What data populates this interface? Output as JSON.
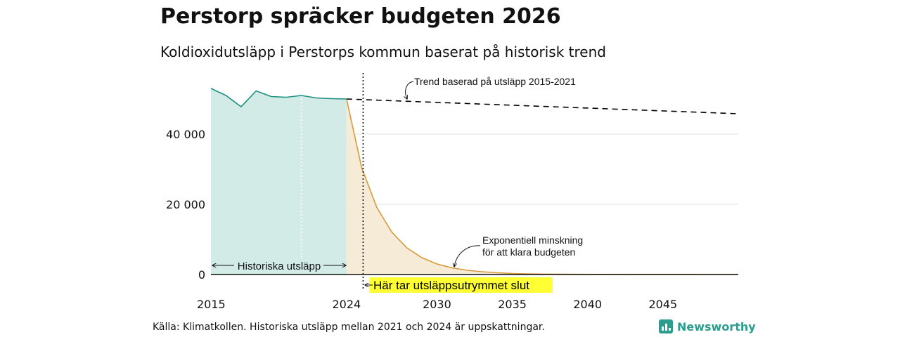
{
  "title": "Perstorp spräcker budgeten 2026",
  "subtitle": "Koldioxidutsläpp i Perstorps kommun baserat på historisk trend",
  "source": "Källa: Klimatkollen. Historiska utsläpp mellan 2021 och 2024 är uppskattningar.",
  "brand": {
    "name": "Newsworthy",
    "icon": "newsworthy-logo-icon",
    "color": "#2a9d8f"
  },
  "colors": {
    "historical_line": "#1a9080",
    "historical_fill": "#d3ebe7",
    "budget_line": "#d89a3a",
    "budget_fill": "#f6ebd7",
    "highlight": "#ffff33"
  },
  "chart_data": {
    "type": "area",
    "title": "Perstorp spräcker budgeten 2026",
    "subtitle": "Koldioxidutsläpp i Perstorps kommun baserat på historisk trend",
    "xlabel": "",
    "ylabel": "",
    "xlim": [
      2015,
      2050
    ],
    "ylim": [
      0,
      55000
    ],
    "grid": true,
    "x_ticks": [
      2015,
      2024,
      2030,
      2035,
      2040,
      2045
    ],
    "x_tick_labels": [
      "2015",
      "2024",
      "2030",
      "2035",
      "2040",
      "2045"
    ],
    "y_ticks": [
      0,
      20000,
      40000
    ],
    "y_tick_labels": [
      "0",
      "20 000",
      "40 000"
    ],
    "series": [
      {
        "name": "Historiska utsläpp",
        "style": "solid-filled",
        "x": [
          2015,
          2016,
          2017,
          2018,
          2019,
          2020,
          2021,
          2022,
          2023,
          2024
        ],
        "y": [
          53000,
          51000,
          47800,
          52300,
          50700,
          50500,
          51000,
          50300,
          50100,
          50000
        ]
      },
      {
        "name": "Trend baserad på utsläpp 2015-2021",
        "style": "dashed",
        "x": [
          2024,
          2050
        ],
        "y": [
          50000,
          45800
        ]
      },
      {
        "name": "Exponentiell minskning för att klara budgeten",
        "style": "solid-filled",
        "x": [
          2024,
          2025,
          2026,
          2027,
          2028,
          2029,
          2030,
          2031,
          2032,
          2033,
          2034,
          2035,
          2036,
          2037,
          2038,
          2040,
          2043,
          2046,
          2050
        ],
        "y": [
          50000,
          30500,
          19200,
          12100,
          7600,
          4800,
          3000,
          1900,
          1200,
          800,
          500,
          300,
          200,
          120,
          80,
          30,
          10,
          5,
          0
        ]
      }
    ],
    "vertical_markers": [
      {
        "x": 2021,
        "style": "dotted-white"
      },
      {
        "x": 2025.1,
        "style": "dotted-black"
      }
    ],
    "annotations": {
      "trend_label": "Trend baserad på utsläpp 2015-2021",
      "exp_label_line1": "Exponentiell minskning",
      "exp_label_line2": "för att klara budgeten",
      "historical_label": "Historiska utsläpp",
      "budget_end_label": "Här tar utsläppsutrymmet slut"
    }
  }
}
